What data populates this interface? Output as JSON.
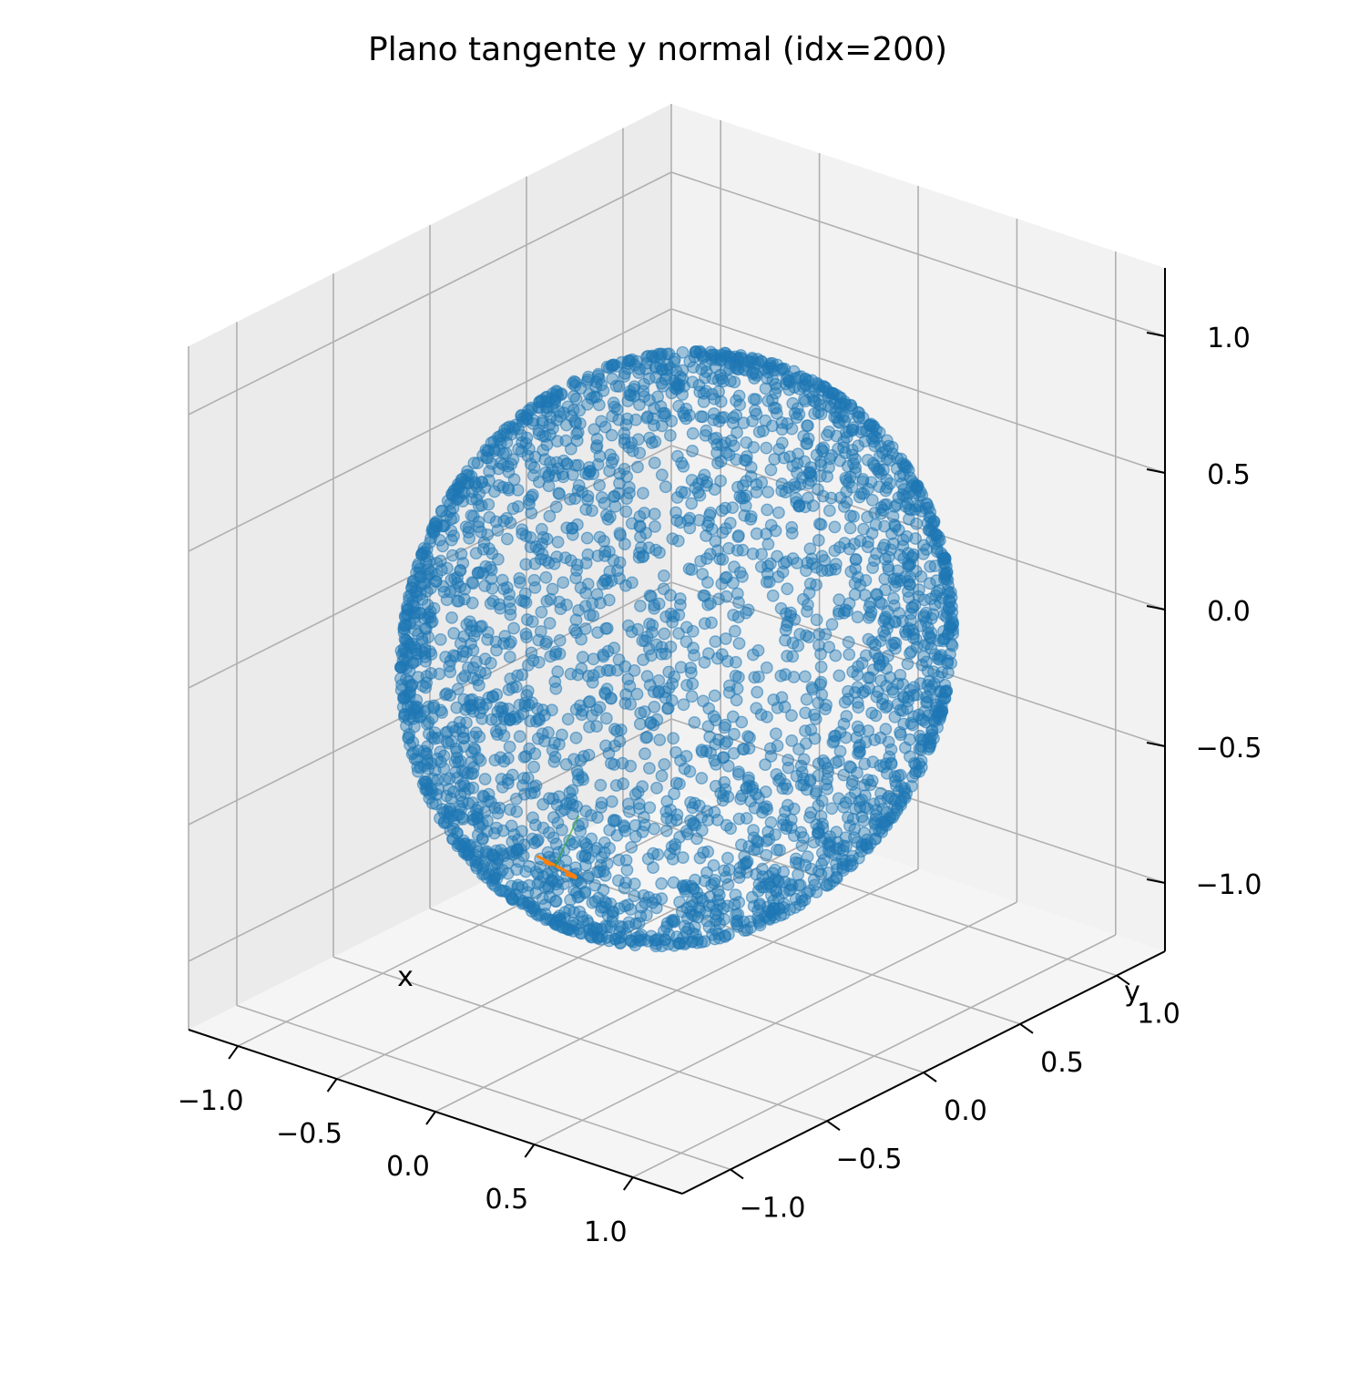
{
  "chart_data": {
    "type": "scatter",
    "title": "Plano tangente y normal (idx=200)",
    "xlabel": "x",
    "ylabel": "y",
    "zlabel": "",
    "xlim": [
      -1.25,
      1.25
    ],
    "ylim": [
      -1.25,
      1.25
    ],
    "zlim": [
      -1.25,
      1.25
    ],
    "xticks": [
      -1.0,
      -0.5,
      0.0,
      0.5,
      1.0
    ],
    "yticks": [
      -1.0,
      -0.5,
      0.0,
      0.5,
      1.0
    ],
    "zticks": [
      -1.0,
      -0.5,
      0.0,
      0.5,
      1.0
    ],
    "xtick_labels": [
      "−1.0",
      "−0.5",
      "0.0",
      "0.5",
      "1.0"
    ],
    "ytick_labels": [
      "−1.0",
      "−0.5",
      "0.0",
      "0.5",
      "1.0"
    ],
    "ztick_labels": [
      "−1.0",
      "−0.5",
      "0.0",
      "0.5",
      "1.0"
    ],
    "grid": true,
    "series": [
      {
        "description": "points sampled on unit sphere surface",
        "color": "#1f77b4",
        "alpha": 0.4,
        "radius": 1.0,
        "center": [
          0,
          0,
          0
        ]
      },
      {
        "description": "tangent plane at selected point",
        "color": "#ff7f0e",
        "point_x": 0.15,
        "point_y": -0.85,
        "point_z": -0.5
      },
      {
        "description": "normal vector at selected point",
        "color": "#2ca02c"
      }
    ],
    "selected_index": 200
  },
  "colors": {
    "sphere": "#1f77b4",
    "tangent": "#ff7f0e",
    "normal": "#2ca02c",
    "pane_back": "#f2f2f2",
    "pane_side": "#ebebeb",
    "pane_floor": "#f5f5f5",
    "grid": "#b0b0b0"
  }
}
